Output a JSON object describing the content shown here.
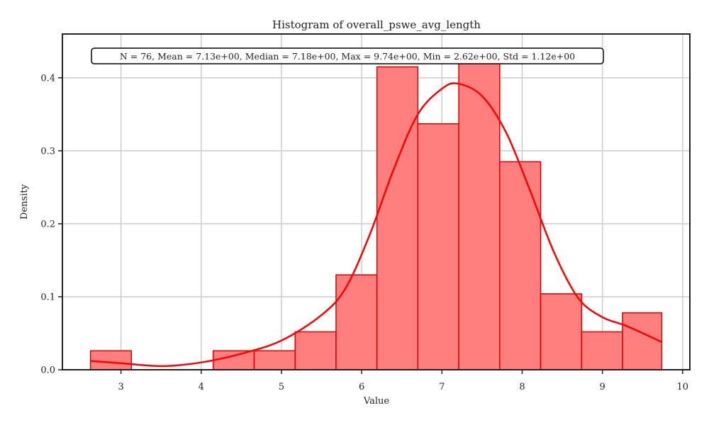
{
  "chart_data": {
    "type": "bar",
    "title": "Histogram of overall_pswe_avg_length",
    "xlabel": "Value",
    "ylabel": "Density",
    "xlim": [
      2.27,
      10.09
    ],
    "ylim": [
      0,
      0.46
    ],
    "xticks": [
      3,
      4,
      5,
      6,
      7,
      8,
      9,
      10
    ],
    "yticks": [
      0.0,
      0.1,
      0.2,
      0.3,
      0.4
    ],
    "grid": true,
    "annotation": "N = 76, Mean = 7.13e+00, Median = 7.18e+00, Max = 9.74e+00, Min = 2.62e+00, Std = 1.12e+00",
    "bin_edges": [
      2.62,
      3.13,
      3.64,
      4.15,
      4.66,
      5.17,
      5.68,
      6.19,
      6.7,
      7.21,
      7.72,
      8.23,
      8.74,
      9.25,
      9.74
    ],
    "densities": [
      0.026,
      0.0,
      0.0,
      0.026,
      0.026,
      0.052,
      0.13,
      0.415,
      0.337,
      0.44,
      0.285,
      0.104,
      0.052,
      0.078
    ],
    "kde": {
      "x": [
        2.62,
        3.0,
        3.5,
        4.0,
        4.5,
        5.0,
        5.5,
        5.8,
        6.1,
        6.4,
        6.7,
        7.0,
        7.2,
        7.5,
        7.8,
        8.1,
        8.4,
        8.7,
        9.0,
        9.3,
        9.74
      ],
      "y": [
        0.012,
        0.009,
        0.005,
        0.01,
        0.022,
        0.04,
        0.075,
        0.112,
        0.185,
        0.275,
        0.35,
        0.385,
        0.392,
        0.375,
        0.325,
        0.245,
        0.16,
        0.098,
        0.072,
        0.06,
        0.038
      ]
    },
    "colors": {
      "fill": "#ff7f7f",
      "edge": "#e00000",
      "kde": "#ff0000"
    }
  }
}
